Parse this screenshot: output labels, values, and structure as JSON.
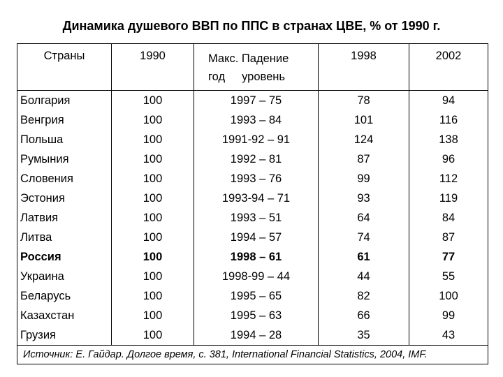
{
  "title": "Динамика душевого ВВП по ППС в странах ЦВЕ, % от 1990 г.",
  "table": {
    "headers": {
      "country": "Страны",
      "y1990": "1990",
      "drop_line1": "Макс. Падение",
      "drop_year": "год",
      "drop_level": "уровень",
      "y1998": "1998",
      "y2002": "2002"
    },
    "rows": [
      {
        "country": "Болгария",
        "y1990": "100",
        "drop": "1997 – 75",
        "y1998": "78",
        "y2002": "94"
      },
      {
        "country": "Венгрия",
        "y1990": "100",
        "drop": "1993 – 84",
        "y1998": "101",
        "y2002": "116"
      },
      {
        "country": "Польша",
        "y1990": "100",
        "drop": "1991-92 – 91",
        "y1998": "124",
        "y2002": "138"
      },
      {
        "country": "Румыния",
        "y1990": "100",
        "drop": "1992 – 81",
        "y1998": "87",
        "y2002": "96"
      },
      {
        "country": "Словения",
        "y1990": "100",
        "drop": "1993 – 76",
        "y1998": "99",
        "y2002": "112"
      },
      {
        "country": "Эстония",
        "y1990": "100",
        "drop": "1993-94 – 71",
        "y1998": "93",
        "y2002": "119"
      },
      {
        "country": "Латвия",
        "y1990": "100",
        "drop": "1993 – 51",
        "y1998": "64",
        "y2002": "84"
      },
      {
        "country": "Литва",
        "y1990": "100",
        "drop": "1994 – 57",
        "y1998": "74",
        "y2002": "87"
      },
      {
        "country": "Россия",
        "y1990": "100",
        "drop": "1998 – 61",
        "y1998": "61",
        "y2002": "77"
      },
      {
        "country": "Украина",
        "y1990": "100",
        "drop": "1998-99 – 44",
        "y1998": "44",
        "y2002": "55"
      },
      {
        "country": "Беларусь",
        "y1990": "100",
        "drop": "1995 – 65",
        "y1998": "82",
        "y2002": "100"
      },
      {
        "country": "Казахстан",
        "y1990": "100",
        "drop": "1995 – 63",
        "y1998": "66",
        "y2002": "99"
      },
      {
        "country": "Грузия",
        "y1990": "100",
        "drop": "1994 – 28",
        "y1998": "35",
        "y2002": "43"
      }
    ],
    "source": "Источник: Е. Гайдар. Долгое время, с. 381, International Financial Statistics, 2004, IMF."
  }
}
